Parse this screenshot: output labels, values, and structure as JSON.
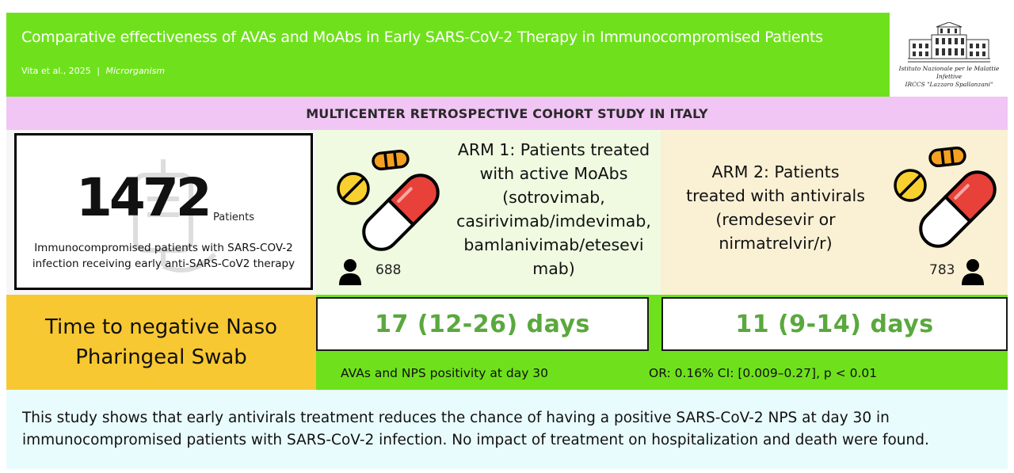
{
  "header": {
    "title": "Comparative effectiveness of AVAs and MoAbs in Early SARS-CoV-2 Therapy in Immunocompromised Patients",
    "citation_authors": "Vita et al., 2025",
    "citation_separator": "|",
    "citation_journal": "Microrganism"
  },
  "logo": {
    "line1": "Istituto Nazionale per le Malattie Infettive",
    "line2": "IRCCS \"Lazzaro Spallanzani\""
  },
  "banner": "MULTICENTER RETROSPECTIVE COHORT STUDY IN ITALY",
  "patients": {
    "number": "1472",
    "label": "Patients",
    "description_line1": "Immunocompromised patients with SARS-COV-2",
    "description_line2": "infection receiving early anti-SARS-CoV2 therapy"
  },
  "arm1": {
    "lines": [
      "ARM 1: Patients treated",
      "with active MoAbs",
      "(sotrovimab,",
      "casirivimab/imdevimab,",
      "bamlanivimab/etesevi",
      "mab)"
    ],
    "count": "688"
  },
  "arm2": {
    "lines": [
      "ARM 2: Patients",
      "treated with antivirals",
      "(remdesevir or",
      "nirmatrelvir/r)"
    ],
    "count": "783"
  },
  "time_label_line1": "Time to negative Naso",
  "time_label_line2": "Pharingeal Swab",
  "results": {
    "arm1": "17 (12-26) days",
    "arm2": "11 (9-14) days"
  },
  "stats": {
    "left": "AVAs and NPS positivity at day 30",
    "right": "OR: 0.16% CI: [0.009–0.27], p < 0.01"
  },
  "conclusion": {
    "line1": "This study shows that early antivirals treatment reduces the chance of having a positive SARS-CoV-2 NPS at day 30 in",
    "line2": "immunocompromised patients with SARS-CoV-2 infection. No impact of treatment on hospitalization and death were found."
  },
  "colors": {
    "header_green": "#6fe11c",
    "banner_pink": "#f1c5f4",
    "arm1_bg": "#effae1",
    "arm2_bg": "#faf0d4",
    "time_yellow": "#f8c832",
    "result_green": "#5aa83e",
    "conclusion_bg": "#e9fcfd"
  },
  "icons": [
    "institute-building-icon",
    "pill-capsule-icon",
    "person-icon",
    "iv-bag-icon"
  ]
}
